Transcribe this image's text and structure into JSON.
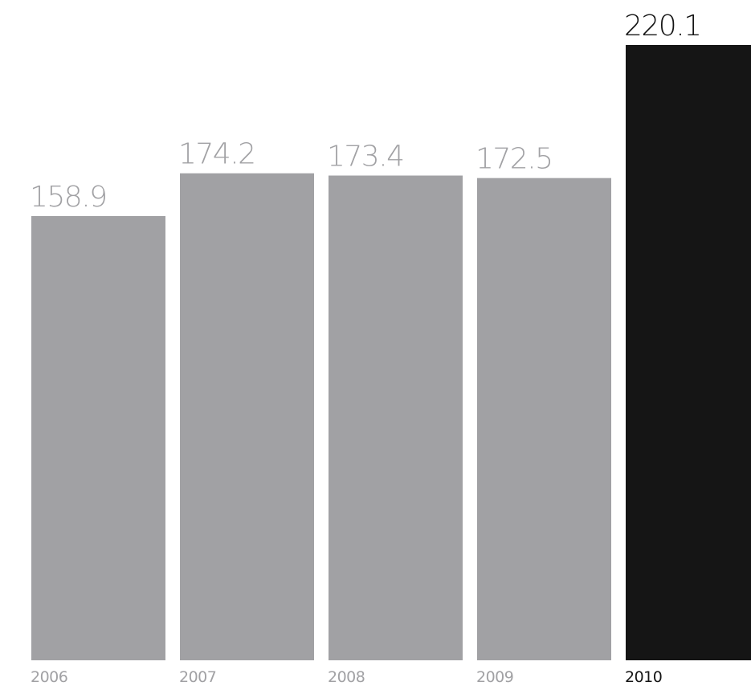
{
  "chart_data": {
    "type": "bar",
    "categories": [
      "2006",
      "2007",
      "2008",
      "2009",
      "2010"
    ],
    "values": [
      158.9,
      174.2,
      173.4,
      172.5,
      220.1
    ],
    "data_labels": [
      "158.9",
      "174.2",
      "173.4",
      "172.5",
      "220.1"
    ],
    "highlight_index": 4,
    "colors": {
      "bar": "#a1a1a4",
      "highlight_bar": "#151515",
      "value_label": "#a1a1a4",
      "highlight_value_label": "#151515",
      "tick_label": "#a1a1a4",
      "highlight_tick_label": "#151515",
      "background": "#ffffff"
    },
    "ylim": [
      0,
      220.1
    ],
    "grid": false,
    "title": "",
    "xlabel": "",
    "ylabel": ""
  }
}
